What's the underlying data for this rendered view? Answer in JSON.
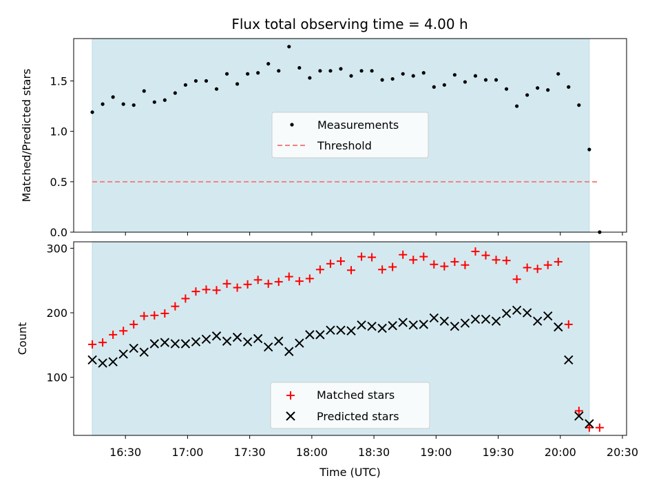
{
  "figure": {
    "title": "Flux total observing time = 4.00 h",
    "observing_window": {
      "start": "16:14",
      "end": "20:14",
      "color": "#d4e9ef"
    }
  },
  "chart_data": [
    {
      "type": "scatter",
      "ylabel": "Matched/Predicted stars",
      "xlabel": "",
      "xlim": [
        "16:05",
        "20:32"
      ],
      "ylim": [
        0,
        1.92
      ],
      "yticks": [
        "0.0",
        "0.5",
        "1.0",
        "1.5"
      ],
      "grid": false,
      "legend_position": "center",
      "threshold": {
        "name": "Threshold",
        "value": 0.5,
        "color": "#f08080",
        "style": "dashed",
        "x_range": [
          "16:14",
          "20:19"
        ]
      },
      "series": [
        {
          "name": "Measurements",
          "color": "#000000",
          "marker": "dot",
          "x": [
            "16:14",
            "16:19",
            "16:24",
            "16:29",
            "16:34",
            "16:39",
            "16:44",
            "16:49",
            "16:54",
            "16:59",
            "17:04",
            "17:09",
            "17:14",
            "17:19",
            "17:24",
            "17:29",
            "17:34",
            "17:39",
            "17:44",
            "17:49",
            "17:54",
            "17:59",
            "18:04",
            "18:09",
            "18:14",
            "18:19",
            "18:24",
            "18:29",
            "18:34",
            "18:39",
            "18:44",
            "18:49",
            "18:54",
            "18:59",
            "19:04",
            "19:09",
            "19:14",
            "19:19",
            "19:24",
            "19:29",
            "19:34",
            "19:39",
            "19:44",
            "19:49",
            "19:54",
            "19:59",
            "20:04",
            "20:09",
            "20:14",
            "20:19"
          ],
          "y": [
            1.19,
            1.27,
            1.34,
            1.27,
            1.26,
            1.4,
            1.29,
            1.31,
            1.38,
            1.46,
            1.5,
            1.5,
            1.42,
            1.57,
            1.47,
            1.57,
            1.58,
            1.67,
            1.6,
            1.84,
            1.63,
            1.53,
            1.6,
            1.6,
            1.62,
            1.55,
            1.6,
            1.6,
            1.51,
            1.52,
            1.57,
            1.55,
            1.58,
            1.44,
            1.46,
            1.56,
            1.49,
            1.55,
            1.51,
            1.51,
            1.42,
            1.25,
            1.36,
            1.43,
            1.41,
            1.57,
            1.44,
            1.26,
            0.82,
            0.0
          ]
        }
      ]
    },
    {
      "type": "scatter",
      "ylabel": "Count",
      "xlabel": "Time (UTC)",
      "xlim": [
        "16:05",
        "20:32"
      ],
      "ylim": [
        10,
        310
      ],
      "yticks": [
        "100",
        "200",
        "300"
      ],
      "xticks": [
        "16:30",
        "17:00",
        "17:30",
        "18:00",
        "18:30",
        "19:00",
        "19:30",
        "20:00",
        "20:30"
      ],
      "grid": false,
      "legend_position": "lower center",
      "series": [
        {
          "name": "Matched stars",
          "color": "#ff0000",
          "marker": "plus",
          "x": [
            "16:14",
            "16:19",
            "16:24",
            "16:29",
            "16:34",
            "16:39",
            "16:44",
            "16:49",
            "16:54",
            "16:59",
            "17:04",
            "17:09",
            "17:14",
            "17:19",
            "17:24",
            "17:29",
            "17:34",
            "17:39",
            "17:44",
            "17:49",
            "17:54",
            "17:59",
            "18:04",
            "18:09",
            "18:14",
            "18:19",
            "18:24",
            "18:29",
            "18:34",
            "18:39",
            "18:44",
            "18:49",
            "18:54",
            "18:59",
            "19:04",
            "19:09",
            "19:14",
            "19:19",
            "19:24",
            "19:29",
            "19:34",
            "19:39",
            "19:44",
            "19:49",
            "19:54",
            "19:59",
            "20:04",
            "20:09",
            "20:14",
            "20:19"
          ],
          "y": [
            151,
            154,
            166,
            172,
            182,
            195,
            196,
            199,
            210,
            222,
            233,
            236,
            235,
            245,
            239,
            244,
            251,
            245,
            248,
            256,
            249,
            253,
            267,
            276,
            280,
            266,
            287,
            286,
            267,
            271,
            290,
            282,
            287,
            275,
            272,
            279,
            274,
            295,
            289,
            282,
            281,
            252,
            270,
            268,
            274,
            279,
            182,
            48,
            22,
            22
          ]
        },
        {
          "name": "Predicted stars",
          "color": "#000000",
          "marker": "x",
          "x": [
            "16:14",
            "16:19",
            "16:24",
            "16:29",
            "16:34",
            "16:39",
            "16:44",
            "16:49",
            "16:54",
            "16:59",
            "17:04",
            "17:09",
            "17:14",
            "17:19",
            "17:24",
            "17:29",
            "17:34",
            "17:39",
            "17:44",
            "17:49",
            "17:54",
            "17:59",
            "18:04",
            "18:09",
            "18:14",
            "18:19",
            "18:24",
            "18:29",
            "18:34",
            "18:39",
            "18:44",
            "18:49",
            "18:54",
            "18:59",
            "19:04",
            "19:09",
            "19:14",
            "19:19",
            "19:24",
            "19:29",
            "19:34",
            "19:39",
            "19:44",
            "19:49",
            "19:54",
            "19:59",
            "20:04",
            "20:09",
            "20:14"
          ],
          "y": [
            127,
            122,
            124,
            136,
            145,
            139,
            152,
            154,
            152,
            152,
            155,
            159,
            164,
            156,
            162,
            155,
            160,
            147,
            156,
            140,
            153,
            166,
            166,
            173,
            173,
            172,
            181,
            179,
            176,
            180,
            185,
            181,
            182,
            192,
            187,
            179,
            184,
            190,
            190,
            187,
            199,
            204,
            200,
            187,
            195,
            178,
            127,
            40,
            28
          ]
        }
      ]
    }
  ]
}
